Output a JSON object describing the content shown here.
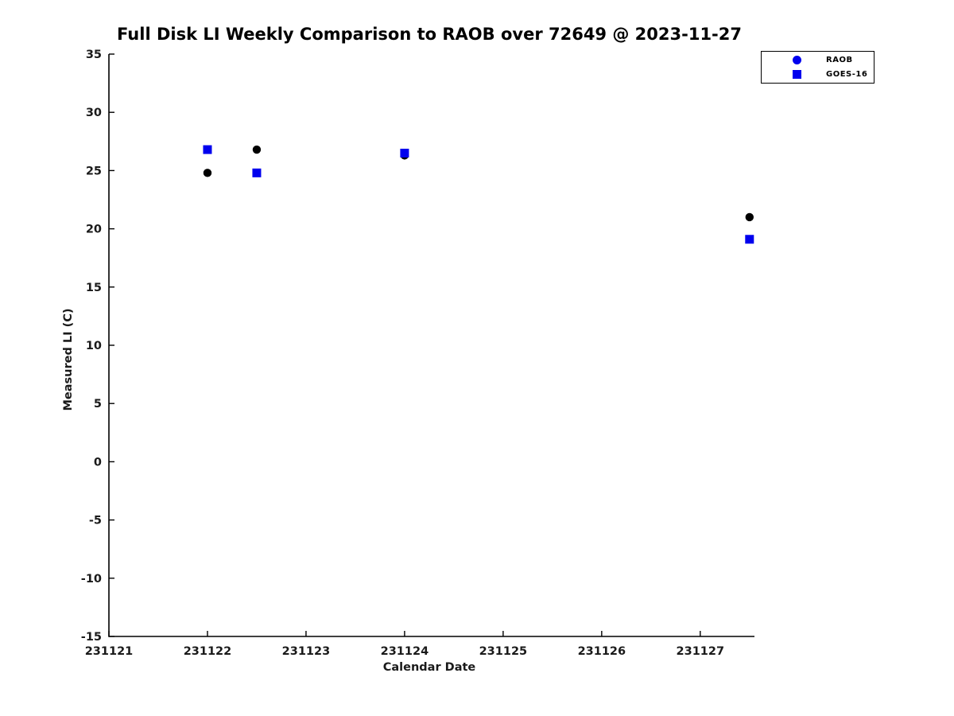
{
  "page": {
    "background": "#ffffff"
  },
  "chart_data": {
    "type": "scatter",
    "title": "Full Disk LI Weekly Comparison to RAOB over 72649 @ 2023-11-27",
    "xlabel": "Calendar Date",
    "ylabel": "Measured LI (C)",
    "xlim": [
      231121,
      231127.55
    ],
    "ylim": [
      -15,
      35
    ],
    "xticks": [
      231121,
      231122,
      231123,
      231124,
      231125,
      231126,
      231127
    ],
    "xtick_labels": [
      "231121",
      "231122",
      "231123",
      "231124",
      "231125",
      "231126",
      "231127"
    ],
    "yticks": [
      35,
      30,
      25,
      20,
      15,
      10,
      5,
      0,
      -5,
      -10,
      -15
    ],
    "ytick_labels": [
      "35",
      "30",
      "25",
      "20",
      "15",
      "10",
      "5",
      "0",
      "-5",
      "-10",
      "-15"
    ],
    "grid": false,
    "legend": {
      "position": "top-right",
      "entries": [
        "RAOB",
        "GOES-16"
      ]
    },
    "series": [
      {
        "name": "RAOB",
        "marker": "circle",
        "color": "#000000",
        "legend_color": "#0000ee",
        "points": [
          [
            231122.0,
            24.8
          ],
          [
            231122.5,
            26.8
          ],
          [
            231124.0,
            26.3
          ],
          [
            231127.5,
            21.0
          ]
        ]
      },
      {
        "name": "GOES-16",
        "marker": "square",
        "color": "#0000ee",
        "legend_color": "#0000ee",
        "points": [
          [
            231122.0,
            26.8
          ],
          [
            231122.5,
            24.8
          ],
          [
            231124.0,
            26.5
          ],
          [
            231127.5,
            19.1
          ]
        ]
      }
    ],
    "axis_color": "#000000",
    "tick_label_color": "#1a1a1a"
  }
}
